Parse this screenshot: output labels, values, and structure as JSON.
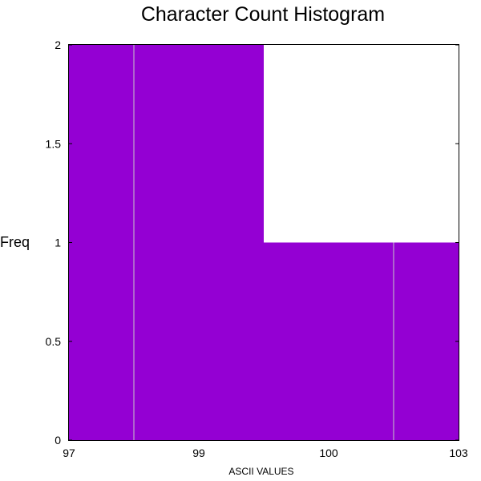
{
  "chart_data": {
    "type": "bar",
    "title": "Character Count Histogram",
    "xlabel": "ASCII VALUES",
    "ylabel": "Freq",
    "x_tick_labels": [
      "97",
      "99",
      "100",
      "103"
    ],
    "y_tick_labels": [
      "0",
      "0.5",
      "1",
      "1.5",
      "2"
    ],
    "ylim": [
      0,
      2
    ],
    "bin_count": 6,
    "bins": [
      {
        "index": 0,
        "value": 2
      },
      {
        "index": 1,
        "value": 2
      },
      {
        "index": 2,
        "value": 2
      },
      {
        "index": 3,
        "value": 1
      },
      {
        "index": 4,
        "value": 1
      },
      {
        "index": 5,
        "value": 1
      }
    ],
    "bar_color": "#9400D3",
    "separator_color": "#c8c8c8",
    "grid": false
  }
}
